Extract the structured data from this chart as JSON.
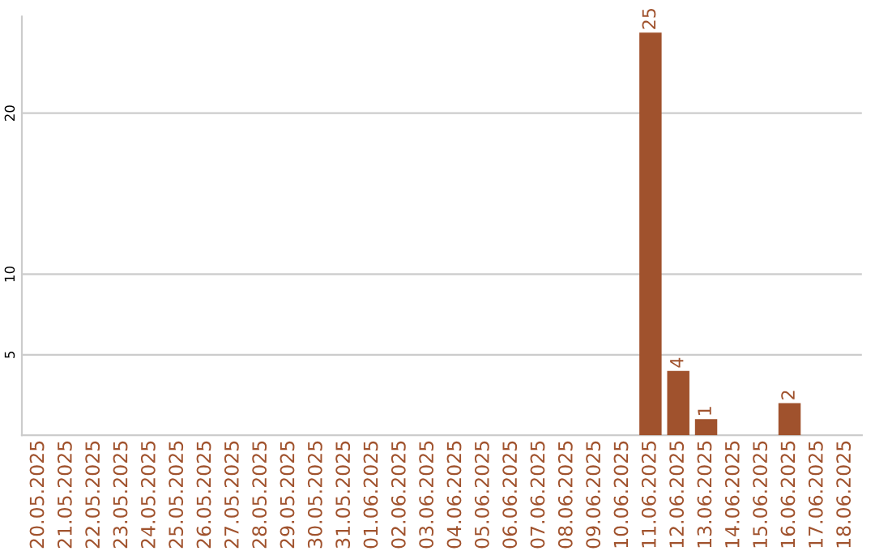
{
  "chart_data": {
    "type": "bar",
    "categories": [
      "20.05.2025",
      "21.05.2025",
      "22.05.2025",
      "23.05.2025",
      "24.05.2025",
      "25.05.2025",
      "26.05.2025",
      "27.05.2025",
      "28.05.2025",
      "29.05.2025",
      "30.05.2025",
      "31.05.2025",
      "01.06.2025",
      "02.06.2025",
      "03.06.2025",
      "04.06.2025",
      "05.06.2025",
      "06.06.2025",
      "07.06.2025",
      "08.06.2025",
      "09.06.2025",
      "10.06.2025",
      "11.06.2025",
      "12.06.2025",
      "13.06.2025",
      "14.06.2025",
      "15.06.2025",
      "16.06.2025",
      "17.06.2025",
      "18.06.2025"
    ],
    "values": [
      0,
      0,
      0,
      0,
      0,
      0,
      0,
      0,
      0,
      0,
      0,
      0,
      0,
      0,
      0,
      0,
      0,
      0,
      0,
      0,
      0,
      0,
      25,
      4,
      1,
      0,
      0,
      2,
      0,
      0
    ],
    "value_labels": [
      null,
      null,
      null,
      null,
      null,
      null,
      null,
      null,
      null,
      null,
      null,
      null,
      null,
      null,
      null,
      null,
      null,
      null,
      null,
      null,
      null,
      null,
      "25",
      "4",
      "1",
      null,
      null,
      "2",
      null,
      null
    ],
    "color": "#a0522d",
    "ylim": [
      0,
      26
    ],
    "yticks": [
      5,
      10,
      20
    ],
    "grid": "y"
  }
}
